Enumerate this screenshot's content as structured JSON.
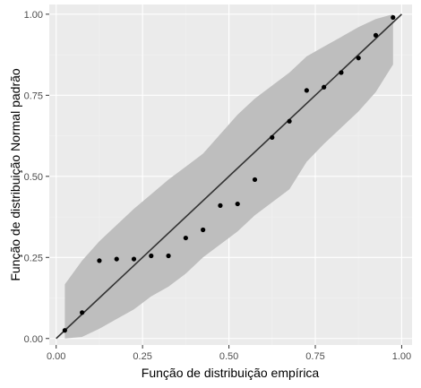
{
  "chart_data": {
    "type": "scatter",
    "title": "",
    "xlabel": "Função de distribuição empírica",
    "ylabel": "Função de distribuição Normal padrão",
    "xlim": [
      -0.02,
      1.03
    ],
    "ylim": [
      -0.02,
      1.03
    ],
    "x_ticks": [
      0.0,
      0.25,
      0.5,
      0.75,
      1.0
    ],
    "x_tick_labels": [
      "0.00",
      "0.25",
      "0.50",
      "0.75",
      "1.00"
    ],
    "y_ticks": [
      0.0,
      0.25,
      0.5,
      0.75,
      1.0
    ],
    "y_tick_labels": [
      "0.00",
      "0.25",
      "0.50",
      "0.75",
      "1.00"
    ],
    "grid": true,
    "reference_line": {
      "from": [
        0,
        0
      ],
      "to": [
        1,
        1
      ],
      "color": "#333333"
    },
    "confidence_band": {
      "color": "#bebebe",
      "upper": [
        [
          0.025,
          0.167
        ],
        [
          0.075,
          0.24
        ],
        [
          0.125,
          0.3
        ],
        [
          0.175,
          0.35
        ],
        [
          0.225,
          0.4
        ],
        [
          0.275,
          0.445
        ],
        [
          0.325,
          0.49
        ],
        [
          0.375,
          0.53
        ],
        [
          0.425,
          0.57
        ],
        [
          0.475,
          0.63
        ],
        [
          0.525,
          0.69
        ],
        [
          0.575,
          0.74
        ],
        [
          0.625,
          0.78
        ],
        [
          0.675,
          0.82
        ],
        [
          0.725,
          0.87
        ],
        [
          0.775,
          0.9
        ],
        [
          0.825,
          0.93
        ],
        [
          0.875,
          0.96
        ],
        [
          0.925,
          0.985
        ],
        [
          0.975,
          1.0
        ]
      ],
      "lower": [
        [
          0.975,
          0.845
        ],
        [
          0.925,
          0.76
        ],
        [
          0.875,
          0.7
        ],
        [
          0.825,
          0.65
        ],
        [
          0.775,
          0.6
        ],
        [
          0.725,
          0.545
        ],
        [
          0.675,
          0.46
        ],
        [
          0.625,
          0.42
        ],
        [
          0.575,
          0.38
        ],
        [
          0.525,
          0.33
        ],
        [
          0.475,
          0.29
        ],
        [
          0.425,
          0.25
        ],
        [
          0.375,
          0.2
        ],
        [
          0.325,
          0.16
        ],
        [
          0.275,
          0.13
        ],
        [
          0.225,
          0.09
        ],
        [
          0.175,
          0.06
        ],
        [
          0.125,
          0.03
        ],
        [
          0.075,
          0.005
        ],
        [
          0.025,
          0.0
        ]
      ]
    },
    "series": [
      {
        "x": [
          0.025,
          0.075,
          0.125,
          0.175,
          0.225,
          0.275,
          0.325,
          0.375,
          0.425,
          0.475,
          0.525,
          0.575,
          0.625,
          0.675,
          0.725,
          0.775,
          0.825,
          0.875,
          0.925,
          0.975
        ],
        "y": [
          0.025,
          0.08,
          0.24,
          0.245,
          0.245,
          0.255,
          0.255,
          0.31,
          0.335,
          0.41,
          0.415,
          0.49,
          0.62,
          0.67,
          0.765,
          0.775,
          0.82,
          0.865,
          0.935,
          0.99
        ],
        "color": "#000000"
      }
    ],
    "colors": {
      "panel": "#ebebeb",
      "grid_major": "#ffffff",
      "grid_minor": "#f2f2f2"
    }
  }
}
